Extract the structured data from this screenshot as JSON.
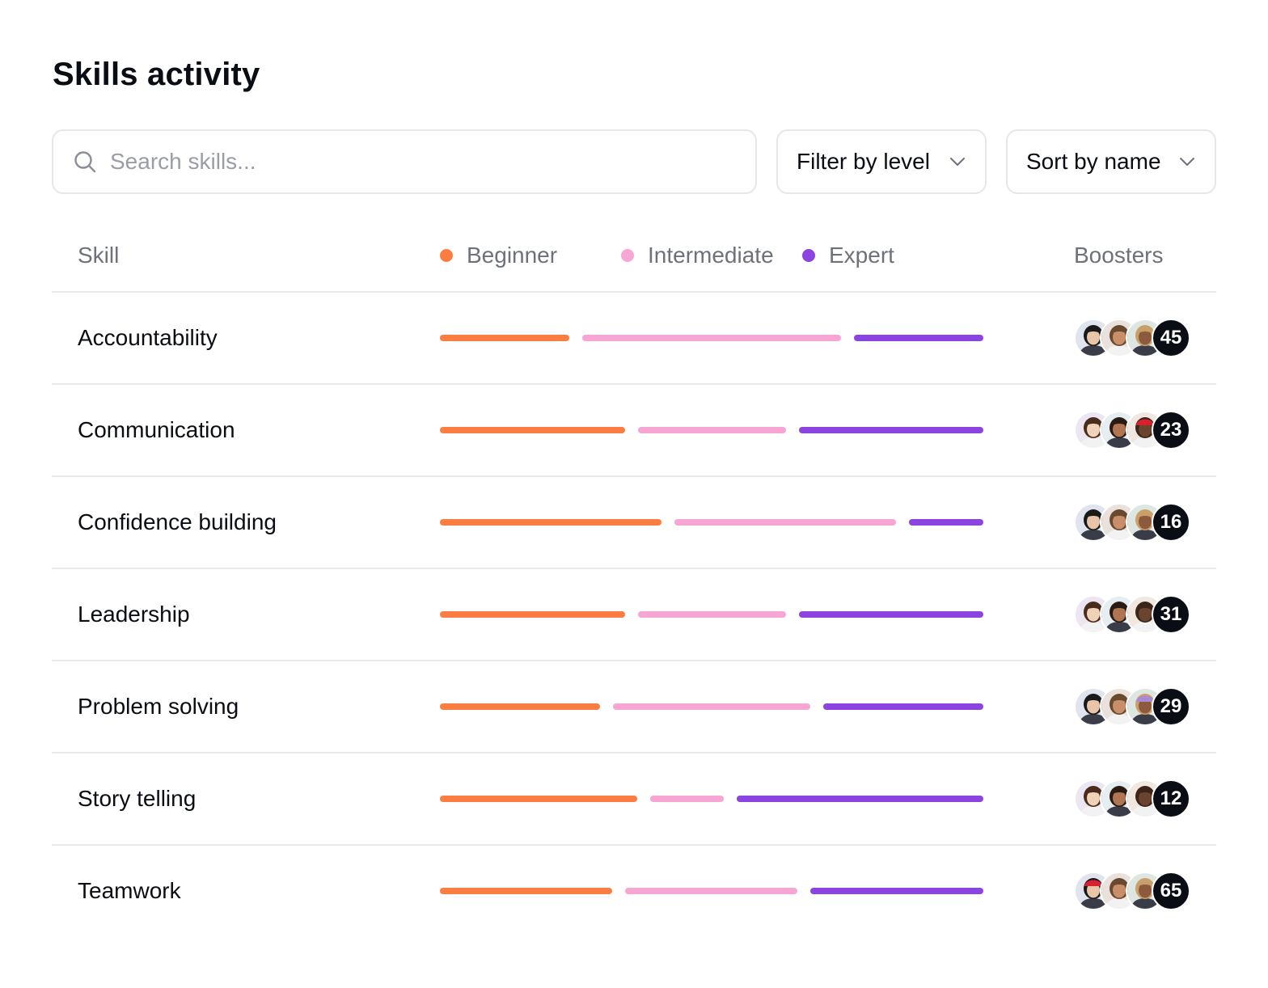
{
  "page": {
    "title": "Skills activity"
  },
  "controls": {
    "search_placeholder": "Search skills...",
    "filter_label": "Filter by level",
    "sort_label": "Sort by name"
  },
  "table": {
    "headers": {
      "skill": "Skill",
      "boosters": "Boosters"
    },
    "legend": [
      {
        "label": "Beginner",
        "color": "#fb7d42"
      },
      {
        "label": "Intermediate",
        "color": "#f7a6d4"
      },
      {
        "label": "Expert",
        "color": "#8b44e0"
      }
    ],
    "rows": [
      {
        "skill": "Accountability",
        "levels": {
          "beginner": 5,
          "intermediate": 10,
          "expert": 5
        },
        "boosters": 45,
        "avatars": [
          "avatar-woman-dark-hair",
          "avatar-woman-curly-hair",
          "avatar-man-beard"
        ]
      },
      {
        "skill": "Communication",
        "levels": {
          "beginner": 7.5,
          "intermediate": 6,
          "expert": 7.5
        },
        "boosters": 23,
        "avatars": [
          "avatar-woman-glasses",
          "avatar-man-light-hair",
          "avatar-woman-red-hat"
        ]
      },
      {
        "skill": "Confidence building",
        "levels": {
          "beginner": 9,
          "intermediate": 9,
          "expert": 3
        },
        "boosters": 16,
        "avatars": [
          "avatar-man-dark-hair",
          "avatar-woman-smiling",
          "avatar-woman-long-hair"
        ]
      },
      {
        "skill": "Leadership",
        "levels": {
          "beginner": 7.5,
          "intermediate": 6,
          "expert": 7.5
        },
        "boosters": 31,
        "avatars": [
          "avatar-man-curly-hair",
          "avatar-woman-dark-skin",
          "avatar-woman-long-hair"
        ]
      },
      {
        "skill": "Problem solving",
        "levels": {
          "beginner": 6.5,
          "intermediate": 8,
          "expert": 6.5
        },
        "boosters": 29,
        "avatars": [
          "avatar-woman-blonde",
          "avatar-woman-black-hair",
          "avatar-person-purple-hat"
        ]
      },
      {
        "skill": "Story telling",
        "levels": {
          "beginner": 8,
          "intermediate": 3,
          "expert": 10
        },
        "boosters": 12,
        "avatars": [
          "avatar-woman-curly-hair",
          "avatar-woman-dark-hair",
          "avatar-man-beard"
        ]
      },
      {
        "skill": "Teamwork",
        "levels": {
          "beginner": 7,
          "intermediate": 7,
          "expert": 7
        },
        "boosters": 65,
        "avatars": [
          "avatar-woman-red-hat",
          "avatar-man-light-hair",
          "avatar-woman-glasses"
        ]
      }
    ]
  }
}
